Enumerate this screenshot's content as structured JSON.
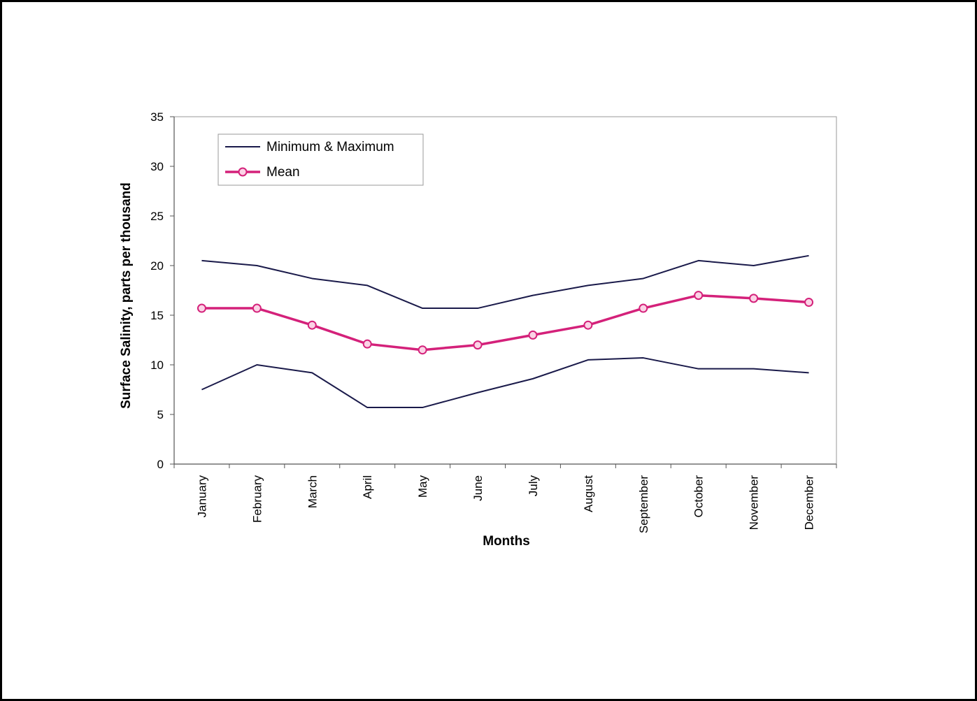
{
  "chart_data": {
    "type": "line",
    "title": "",
    "xlabel": "Months",
    "ylabel": "Surface Salinity, parts per thousand",
    "ylim": [
      0,
      35
    ],
    "yticks": [
      0,
      5,
      10,
      15,
      20,
      25,
      30,
      35
    ],
    "grid": false,
    "legend_position": "top-left",
    "categories": [
      "January",
      "February",
      "March",
      "April",
      "May",
      "June",
      "July",
      "August",
      "September",
      "October",
      "November",
      "December"
    ],
    "series": [
      {
        "name": "Minimum & Maximum",
        "color": "#1a1a4a",
        "marker": "none",
        "values": [
          20.5,
          20.0,
          18.7,
          18.0,
          15.7,
          15.7,
          17.0,
          18.0,
          18.7,
          20.5,
          20.0,
          21.0
        ]
      },
      {
        "name": "Mean",
        "color": "#d4217a",
        "marker": "circle",
        "values": [
          15.7,
          15.7,
          14.0,
          12.1,
          11.5,
          12.0,
          13.0,
          14.0,
          15.7,
          17.0,
          16.7,
          16.3
        ]
      },
      {
        "name": "",
        "color": "#1a1a4a",
        "marker": "none",
        "values": [
          7.5,
          10.0,
          9.2,
          5.7,
          5.7,
          7.2,
          8.6,
          10.5,
          10.7,
          9.6,
          9.6,
          9.2
        ]
      }
    ]
  }
}
